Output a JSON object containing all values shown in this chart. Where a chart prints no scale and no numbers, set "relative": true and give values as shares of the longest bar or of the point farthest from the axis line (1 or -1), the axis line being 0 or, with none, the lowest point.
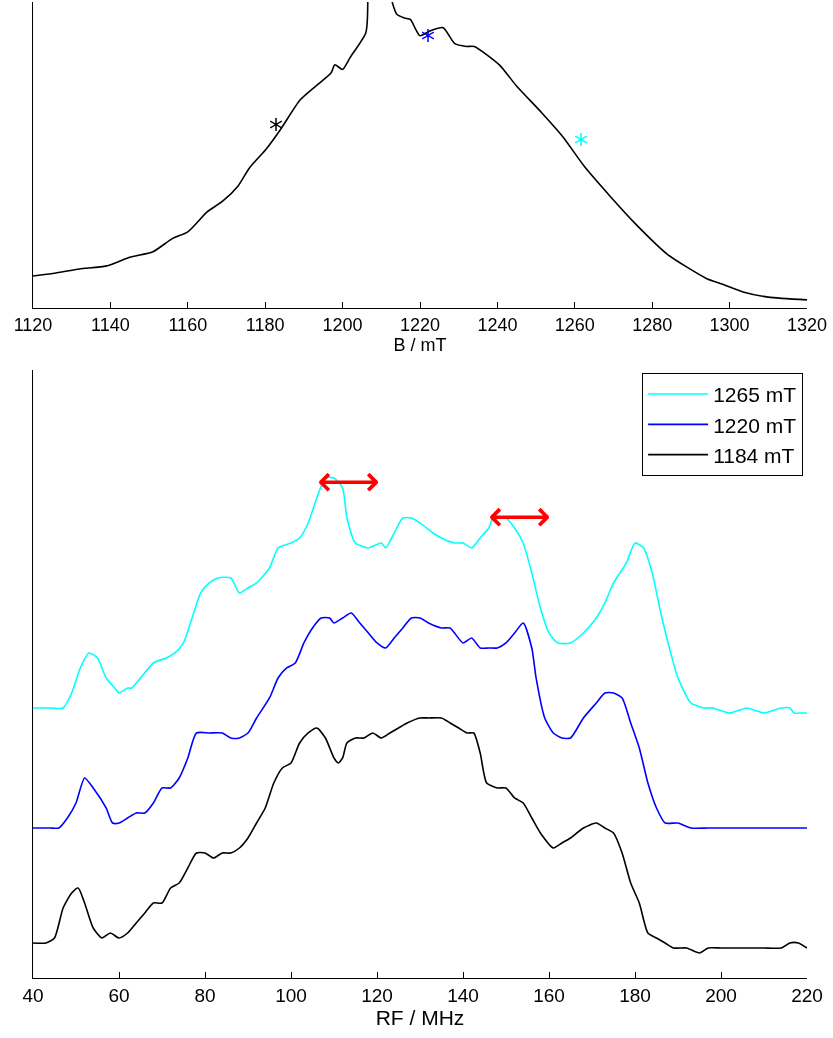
{
  "chart_data": [
    {
      "type": "line",
      "relative": true,
      "xlabel": "B / mT",
      "xlim": [
        1120,
        1320
      ],
      "xticks": [
        1120,
        1140,
        1160,
        1180,
        1200,
        1220,
        1240,
        1260,
        1280,
        1300,
        1320
      ],
      "legend": false,
      "x": [
        1120,
        1125.5,
        1132,
        1139,
        1145,
        1151,
        1156,
        1160,
        1165,
        1169,
        1173,
        1176,
        1180,
        1184,
        1189,
        1193,
        1197,
        1198,
        1200,
        1202,
        1206,
        1206.5,
        1209,
        1212.8,
        1214,
        1216,
        1217.5,
        1219,
        1220,
        1223,
        1226,
        1229,
        1232,
        1234,
        1240.5,
        1245,
        1251.5,
        1257,
        1262.5,
        1269,
        1276,
        1284,
        1294,
        1298,
        1303.5,
        1310,
        1320
      ],
      "series": [
        {
          "color": "#000000",
          "values": [
            0.106,
            0.115,
            0.129,
            0.139,
            0.167,
            0.185,
            0.228,
            0.25,
            0.315,
            0.35,
            0.4,
            0.46,
            0.516,
            0.585,
            0.68,
            0.725,
            0.768,
            0.795,
            0.78,
            0.82,
            0.9,
            1.0,
            null,
            1.0,
            0.96,
            0.948,
            0.943,
            0.908,
            0.89,
            0.908,
            0.916,
            0.864,
            0.855,
            0.855,
            0.795,
            0.725,
            0.638,
            0.559,
            0.463,
            0.368,
            0.272,
            0.176,
            0.098,
            0.08,
            0.054,
            0.037,
            0.028
          ]
        }
      ],
      "annotations": [
        "*",
        "*",
        "*"
      ]
    },
    {
      "type": "line",
      "relative": true,
      "xlabel": "RF / MHz",
      "xlim": [
        40,
        220
      ],
      "xticks": [
        40,
        60,
        80,
        100,
        120,
        140,
        160,
        180,
        200,
        220
      ],
      "legend": "top right",
      "series": [
        {
          "name": "1265 mT",
          "color": "#00ffff",
          "x": [
            40,
            44,
            47,
            49,
            51,
            53,
            55,
            57,
            59,
            60,
            62,
            63,
            65,
            68,
            71,
            73,
            75,
            77,
            79,
            81,
            83,
            86,
            88,
            90,
            92,
            95,
            97,
            100,
            102,
            104,
            106,
            108,
            110,
            112,
            113,
            115,
            118,
            121,
            122,
            124,
            126,
            128,
            130,
            133,
            135,
            138,
            140,
            142,
            144,
            146,
            147,
            150,
            152,
            154,
            156,
            158,
            160,
            162,
            165,
            168,
            171,
            173,
            175,
            178,
            180,
            182,
            184,
            186,
            188,
            190,
            193,
            196,
            198,
            202,
            206,
            210,
            214,
            216,
            217,
            219,
            220
          ],
          "values": [
            0.54,
            0.54,
            0.54,
            0.57,
            0.62,
            0.65,
            0.64,
            0.6,
            0.58,
            0.57,
            0.58,
            0.58,
            0.6,
            0.63,
            0.64,
            0.65,
            0.67,
            0.72,
            0.77,
            0.79,
            0.8,
            0.8,
            0.77,
            0.78,
            0.79,
            0.82,
            0.86,
            0.87,
            0.88,
            0.91,
            0.96,
            1.0,
            1.0,
            0.98,
            0.92,
            0.87,
            0.86,
            0.87,
            0.86,
            0.89,
            0.92,
            0.92,
            0.91,
            0.89,
            0.88,
            0.87,
            0.87,
            0.86,
            0.88,
            0.9,
            0.92,
            0.92,
            0.9,
            0.87,
            0.81,
            0.74,
            0.69,
            0.67,
            0.67,
            0.69,
            0.72,
            0.75,
            0.79,
            0.83,
            0.87,
            0.86,
            0.81,
            0.73,
            0.66,
            0.6,
            0.55,
            0.54,
            0.54,
            0.53,
            0.54,
            0.53,
            0.54,
            0.54,
            0.53,
            0.53,
            0.53
          ]
        },
        {
          "name": "1220 mT",
          "color": "#0000ff",
          "x": [
            40,
            44,
            46,
            48,
            50,
            52,
            54,
            57,
            58.5,
            60,
            62,
            64,
            66,
            68,
            70,
            72,
            74,
            76,
            78,
            81,
            84,
            86,
            88,
            90,
            92,
            95,
            97,
            99,
            101,
            103,
            105,
            107,
            109,
            110,
            112,
            114,
            116,
            118,
            120,
            122,
            124,
            126,
            128,
            130,
            132,
            135,
            137,
            140,
            142,
            144,
            146,
            148,
            150,
            152,
            154,
            156,
            157,
            159,
            161,
            163,
            165,
            168,
            171,
            173,
            175,
            177,
            179,
            181,
            183,
            185,
            187,
            190,
            193,
            197,
            200,
            205,
            210,
            215,
            218,
            220
          ],
          "values": [
            0.3,
            0.3,
            0.3,
            0.32,
            0.35,
            0.4,
            0.38,
            0.34,
            0.31,
            0.31,
            0.32,
            0.33,
            0.33,
            0.35,
            0.38,
            0.38,
            0.4,
            0.44,
            0.49,
            0.49,
            0.49,
            0.48,
            0.48,
            0.49,
            0.52,
            0.56,
            0.6,
            0.62,
            0.63,
            0.67,
            0.7,
            0.72,
            0.72,
            0.71,
            0.72,
            0.73,
            0.71,
            0.69,
            0.67,
            0.66,
            0.68,
            0.7,
            0.72,
            0.72,
            0.71,
            0.7,
            0.7,
            0.67,
            0.68,
            0.66,
            0.66,
            0.66,
            0.67,
            0.69,
            0.71,
            0.66,
            0.6,
            0.52,
            0.49,
            0.48,
            0.48,
            0.52,
            0.55,
            0.57,
            0.57,
            0.56,
            0.51,
            0.46,
            0.39,
            0.34,
            0.31,
            0.31,
            0.3,
            0.3,
            0.3,
            0.3,
            0.3,
            0.3,
            0.3,
            0.3
          ]
        },
        {
          "name": "1184 mT",
          "color": "#000000",
          "x": [
            40,
            43,
            45,
            47,
            49,
            50.5,
            52,
            54,
            56,
            58,
            60,
            62,
            64,
            66,
            68,
            70,
            72,
            74,
            76,
            78,
            80,
            82,
            84,
            86,
            88,
            90,
            92,
            94,
            96,
            98,
            100,
            102,
            104,
            106,
            108,
            110,
            111,
            112,
            113,
            115,
            117,
            119,
            121,
            123,
            125,
            127,
            130,
            132,
            135,
            137,
            139,
            141,
            142.5,
            144,
            145.5,
            148,
            150,
            152,
            154,
            156,
            158,
            161,
            163,
            165,
            168,
            171,
            173,
            175,
            177,
            179,
            181,
            183,
            185,
            187,
            189,
            192,
            195,
            197,
            200,
            203,
            206,
            210,
            214,
            216,
            218,
            220
          ],
          "values": [
            0.07,
            0.07,
            0.08,
            0.14,
            0.17,
            0.18,
            0.15,
            0.1,
            0.08,
            0.09,
            0.08,
            0.09,
            0.11,
            0.13,
            0.15,
            0.15,
            0.18,
            0.19,
            0.22,
            0.25,
            0.25,
            0.24,
            0.25,
            0.25,
            0.26,
            0.28,
            0.31,
            0.34,
            0.39,
            0.42,
            0.43,
            0.47,
            0.49,
            0.5,
            0.48,
            0.44,
            0.43,
            0.44,
            0.47,
            0.48,
            0.48,
            0.49,
            0.48,
            0.49,
            0.5,
            0.51,
            0.52,
            0.52,
            0.52,
            0.51,
            0.5,
            0.49,
            0.49,
            0.45,
            0.39,
            0.38,
            0.38,
            0.36,
            0.35,
            0.32,
            0.29,
            0.26,
            0.27,
            0.28,
            0.3,
            0.31,
            0.3,
            0.29,
            0.25,
            0.19,
            0.15,
            0.09,
            0.08,
            0.07,
            0.06,
            0.06,
            0.05,
            0.06,
            0.06,
            0.06,
            0.06,
            0.06,
            0.06,
            0.07,
            0.07,
            0.06
          ]
        }
      ],
      "annotations": [
        "⟷",
        "⟷"
      ]
    }
  ]
}
